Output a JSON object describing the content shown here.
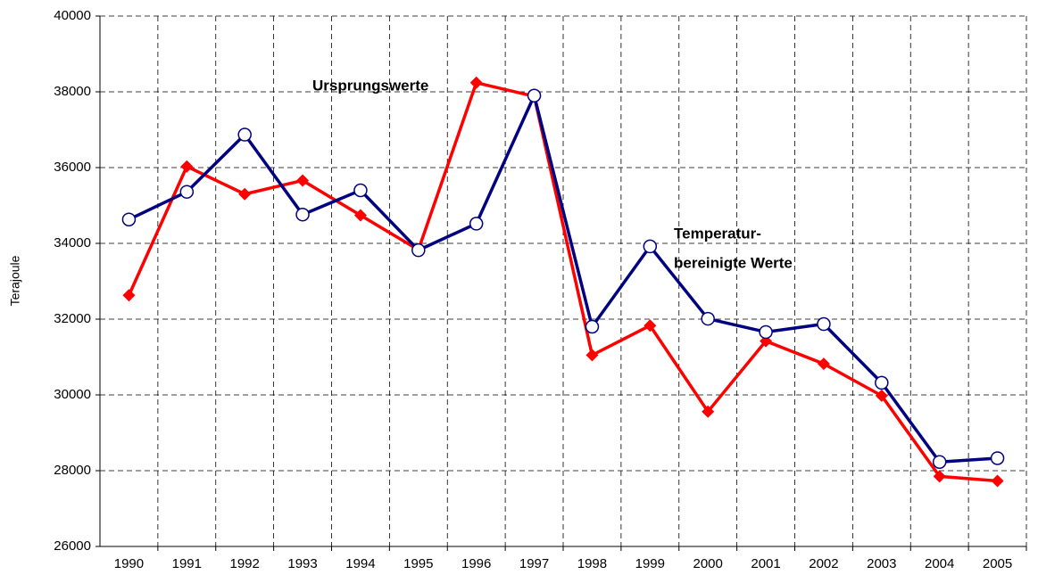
{
  "chart_data": {
    "type": "line",
    "y_label": "Terajoule",
    "categories": [
      "1990",
      "1991",
      "1992",
      "1993",
      "1994",
      "1995",
      "1996",
      "1997",
      "1998",
      "1999",
      "2000",
      "2001",
      "2002",
      "2003",
      "2004",
      "2005"
    ],
    "series": [
      {
        "color": "#ff0000",
        "marker": "diamond",
        "values": [
          32630,
          36030,
          35300,
          35660,
          34740,
          33830,
          38240,
          37880,
          31050,
          31830,
          29560,
          31420,
          30820,
          29980,
          27850,
          27730
        ]
      },
      {
        "color": "#000080",
        "marker": "circle",
        "values": [
          34630,
          35360,
          36870,
          34760,
          35400,
          33820,
          34520,
          37900,
          31800,
          33920,
          32010,
          31660,
          31870,
          30320,
          28230,
          28330
        ]
      }
    ],
    "annotations": [
      "Ursprungswerte",
      "Temperatur-",
      "bereinigte Werte"
    ],
    "ylim": [
      26000,
      40000
    ],
    "yticks": [
      26000,
      28000,
      30000,
      32000,
      34000,
      36000,
      38000,
      40000
    ],
    "grid": true
  }
}
